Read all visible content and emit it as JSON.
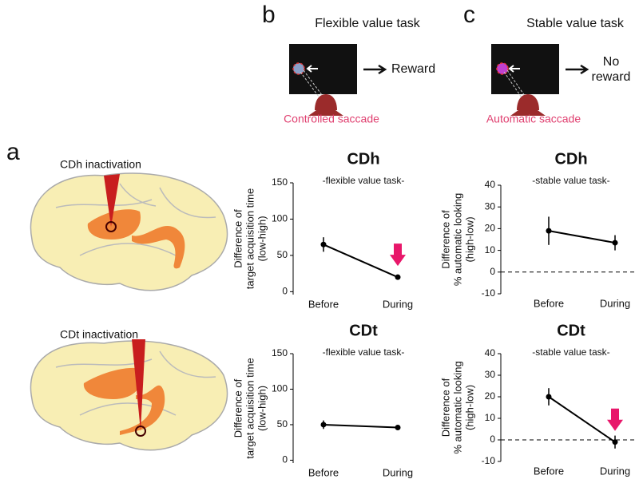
{
  "figure": {
    "panels": [
      "a",
      "b",
      "c"
    ],
    "brain_labels": [
      "CDh inactivation",
      "CDt inactivation"
    ],
    "task_titles": [
      "Flexible value task",
      "Stable value task"
    ],
    "outcomes": [
      [
        "Reward"
      ],
      [
        "No",
        "reward"
      ]
    ],
    "saccades": [
      "Controlled saccade",
      "Automatic saccade"
    ]
  },
  "chart_data": [
    {
      "type": "line",
      "title": "CDh",
      "subtitle": "-flexible value task-",
      "ylabel": [
        "Difference of",
        "target acquisition time",
        "(low-high)"
      ],
      "categories": [
        "Before",
        "During"
      ],
      "values": [
        65,
        20
      ],
      "errors": [
        10,
        3
      ],
      "color": "#000000",
      "ylim": [
        -4,
        150
      ],
      "yticks": [
        0,
        50,
        100,
        150
      ],
      "arrow": true,
      "arrow_color": "#e8176a"
    },
    {
      "type": "line",
      "title": "CDt",
      "subtitle": "-flexible value task-",
      "ylabel": [
        "Difference of",
        "target acquisition time",
        "(low-high)"
      ],
      "categories": [
        "Before",
        "During"
      ],
      "values": [
        50,
        46
      ],
      "errors": [
        6,
        3
      ],
      "color": "#000000",
      "ylim": [
        -4,
        150
      ],
      "yticks": [
        0,
        50,
        100,
        150
      ],
      "arrow": false
    },
    {
      "type": "line",
      "title": "CDh",
      "subtitle": "-stable value task-",
      "ylabel": [
        "Difference of",
        "% automatic looking",
        "(high-low)"
      ],
      "categories": [
        "Before",
        "During"
      ],
      "values": [
        19,
        13.5
      ],
      "errors": [
        6.5,
        3.5
      ],
      "color": "#000000",
      "ylim": [
        -10,
        40
      ],
      "yticks": [
        -10,
        0,
        10,
        20,
        30,
        40
      ],
      "refline": 0,
      "arrow": false
    },
    {
      "type": "line",
      "title": "CDt",
      "subtitle": "-stable value task-",
      "ylabel": [
        "Difference of",
        "% automatic looking",
        "(high-low)"
      ],
      "categories": [
        "Before",
        "During"
      ],
      "values": [
        20,
        -1
      ],
      "errors": [
        4,
        3
      ],
      "color": "#000000",
      "ylim": [
        -10,
        40
      ],
      "yticks": [
        -10,
        0,
        10,
        20,
        30,
        40
      ],
      "refline": 0,
      "arrow": true,
      "arrow_color": "#e8176a"
    }
  ]
}
